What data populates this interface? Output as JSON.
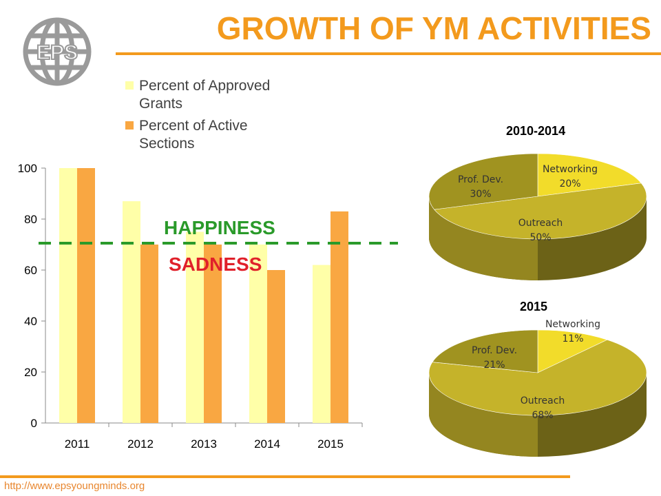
{
  "header": {
    "title": "GROWTH OF YM ACTIVITIES",
    "logo_text": "EPS"
  },
  "footer": {
    "url": "http://www.epsyoungminds.org"
  },
  "colors": {
    "accent": "#f39a1d",
    "approved": "#ffffa8",
    "active": "#f9a742",
    "happiness": "#2a9a2a",
    "sadness": "#e0202a",
    "networking": "#f2dc2a",
    "outreach": "#c5b32a",
    "prof_dev": "#a09320"
  },
  "annotations": {
    "happiness": "HAPPINESS",
    "sadness": "SADNESS",
    "threshold": 70
  },
  "chart_data": [
    {
      "type": "bar",
      "categories": [
        "2011",
        "2012",
        "2013",
        "2014",
        "2015"
      ],
      "series": [
        {
          "name": "Percent of Approved Grants",
          "values": [
            100,
            87,
            75,
            70,
            62
          ]
        },
        {
          "name": "Percent of Active Sections",
          "values": [
            100,
            70,
            70,
            60,
            83
          ]
        }
      ],
      "ylim": [
        0,
        100
      ],
      "yticks": [
        "0",
        "20",
        "40",
        "60",
        "80",
        "100"
      ],
      "grid": false,
      "legend": "top"
    },
    {
      "type": "pie",
      "title": "2010-2014",
      "slices": [
        {
          "label": "Networking",
          "value": 20,
          "pct": "20%"
        },
        {
          "label": "Outreach",
          "value": 50,
          "pct": "50%"
        },
        {
          "label": "Prof. Dev.",
          "value": 30,
          "pct": "30%"
        }
      ]
    },
    {
      "type": "pie",
      "title": "2015",
      "slices": [
        {
          "label": "Networking",
          "value": 11,
          "pct": "11%"
        },
        {
          "label": "Outreach",
          "value": 68,
          "pct": "68%"
        },
        {
          "label": "Prof. Dev.",
          "value": 21,
          "pct": "21%"
        }
      ]
    }
  ]
}
